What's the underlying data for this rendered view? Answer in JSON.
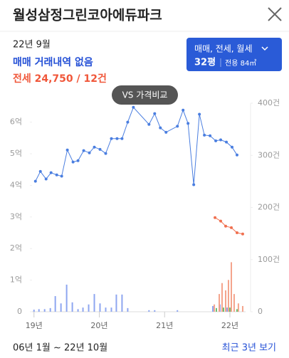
{
  "header": {
    "title": "월성삼정그린코아에듀파크"
  },
  "summary": {
    "date": "22년 9월",
    "trade": "매매 거래내역 없음",
    "lease": "전세 24,750 / 12건"
  },
  "filter": {
    "types": "매매, 전세, 월세",
    "size": "32평",
    "area": "전용 84㎡"
  },
  "compare_button": "VS 가격비교",
  "chart_data": {
    "type": "line",
    "xlim": [
      2018.97,
      2022.24
    ],
    "xticks": [
      {
        "value": 2019,
        "label": "19년"
      },
      {
        "value": 2020,
        "label": "20년"
      },
      {
        "value": 2021,
        "label": "21년"
      },
      {
        "value": 2022,
        "label": "22년"
      }
    ],
    "ylim": [
      0,
      6.6
    ],
    "yticks": [
      0,
      {
        "value": 1,
        "label": "1억"
      },
      {
        "value": 2,
        "label": "2억"
      },
      {
        "value": 3,
        "label": "3억"
      },
      {
        "value": 4,
        "label": "4억"
      },
      {
        "value": 5,
        "label": "5억"
      },
      {
        "value": 6,
        "label": "6억"
      }
    ],
    "y2lim": [
      0,
      400
    ],
    "y2ticks": [
      0,
      {
        "value": 100,
        "label": "100건"
      },
      {
        "value": 200,
        "label": "200건"
      },
      {
        "value": 300,
        "label": "300건"
      },
      {
        "value": 400,
        "label": "400건"
      }
    ],
    "series": [
      {
        "type": "line",
        "color": "#4a7ee0",
        "x": [
          2019.022,
          2019.098,
          2019.185,
          2019.261,
          2019.348,
          2019.424,
          2019.511,
          2019.598,
          2019.674,
          2019.761,
          2019.848,
          2019.924,
          2020.011,
          2020.098,
          2020.185,
          2020.272,
          2020.348,
          2020.435,
          2020.522,
          2020.761,
          2020.848,
          2020.935,
          2021.022,
          2021.196,
          2021.283,
          2021.359,
          2021.446,
          2021.533,
          2021.609,
          2021.696,
          2021.783,
          2021.859,
          2021.946,
          2022.033,
          2022.109
        ],
        "values": [
          4.13,
          4.44,
          4.2,
          4.4,
          4.33,
          4.29,
          5.12,
          4.74,
          4.78,
          5.1,
          5.03,
          5.21,
          5.14,
          5.01,
          5.48,
          5.48,
          5.48,
          6.0,
          6.47,
          5.93,
          6.27,
          5.82,
          5.68,
          5.87,
          6.38,
          5.96,
          4.02,
          6.25,
          5.59,
          5.57,
          5.41,
          5.44,
          5.37,
          5.21,
          4.96
        ]
      },
      {
        "type": "line",
        "color": "#f07050",
        "x": [
          2021.772,
          2021.859,
          2021.935,
          2022.022,
          2022.109,
          2022.196
        ],
        "values": [
          2.98,
          2.87,
          2.71,
          2.66,
          2.5,
          2.46
        ]
      },
      {
        "type": "bar",
        "axis": "y2",
        "color": "#8ea6f0",
        "x": [
          2019.0,
          2019.076,
          2019.163,
          2019.25,
          2019.326,
          2019.413,
          2019.5,
          2019.587,
          2019.674,
          2019.75,
          2019.837,
          2019.924,
          2020.011,
          2020.098,
          2020.185,
          2020.261,
          2020.348,
          2020.435,
          2020.761,
          2020.848,
          2021.196,
          2021.739,
          2021.848,
          2021.957
        ],
        "values": [
          4,
          5,
          5,
          7,
          30,
          16,
          52,
          18,
          5,
          8,
          14,
          34,
          16,
          8,
          8,
          33,
          33,
          7,
          3,
          3,
          3,
          11,
          14,
          8
        ]
      },
      {
        "type": "bar",
        "axis": "y2",
        "color": "#f4a48c",
        "x": [
          2021.761,
          2021.837,
          2021.88,
          2021.935,
          2021.978,
          2022.022,
          2022.065,
          2022.13,
          2022.196
        ],
        "values": [
          14,
          34,
          55,
          41,
          61,
          95,
          34,
          16,
          11
        ]
      },
      {
        "type": "bar",
        "axis": "y2",
        "color": "#6cc070",
        "x": [
          2021.793,
          2021.902,
          2022.0,
          2022.109
        ],
        "values": [
          7,
          8,
          8,
          5
        ]
      }
    ]
  },
  "footer": {
    "period": "06년 1월 ~ 22년 10월",
    "recent_link": "최근 3년 보기"
  }
}
